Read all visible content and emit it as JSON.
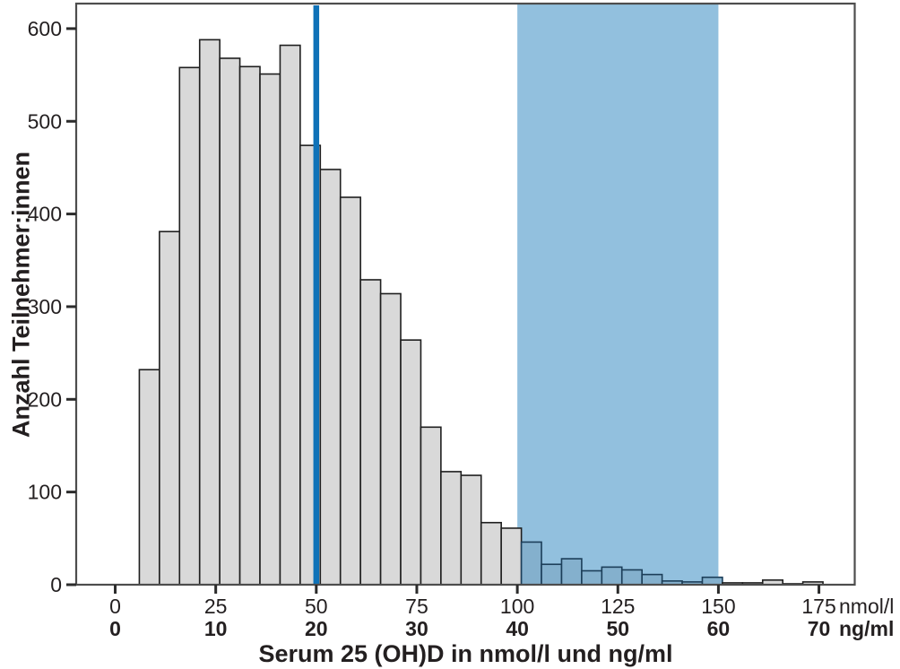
{
  "chart_data": {
    "type": "bar",
    "subtype": "histogram",
    "title": "",
    "xlabel": "Serum 25 (OH)D in nmol/l und ng/ml",
    "ylabel": "Anzahl Teilnehmer:innen",
    "bin_start_nmol": 6,
    "bin_width_nmol": 5,
    "values": [
      232,
      381,
      558,
      588,
      568,
      559,
      551,
      582,
      474,
      448,
      418,
      329,
      314,
      264,
      170,
      122,
      118,
      67,
      61,
      46,
      22,
      28,
      15,
      19,
      16,
      11,
      4,
      3,
      8,
      2,
      2,
      5,
      1,
      3
    ],
    "y_ticks": [
      0,
      100,
      200,
      300,
      400,
      500,
      600
    ],
    "x_ticks_nmol": [
      0,
      25,
      50,
      75,
      100,
      125,
      150,
      175
    ],
    "x_ticks_ng": [
      0,
      10,
      20,
      30,
      40,
      50,
      60,
      70
    ],
    "x_unit_top": "nmol/l",
    "x_unit_bottom": "ng/ml",
    "xlim": [
      -9.7,
      183.9
    ],
    "ylim": [
      0,
      627
    ],
    "grid": "off",
    "legend": "none",
    "reference_line_x_nmol": 50,
    "shaded_region_nmol": [
      100,
      150
    ],
    "colors": {
      "bar_fill": "#d9d9d9",
      "bar_stroke": "#1f1f1f",
      "region_fill": "#92c0de",
      "region_bar_fill": "#84b0cd",
      "region_bar_stroke": "#1c3e59",
      "reference_line": "#0e72b8",
      "axis": "#4d4d4d",
      "tick": "#2b2b2b",
      "text": "#231f20"
    }
  }
}
